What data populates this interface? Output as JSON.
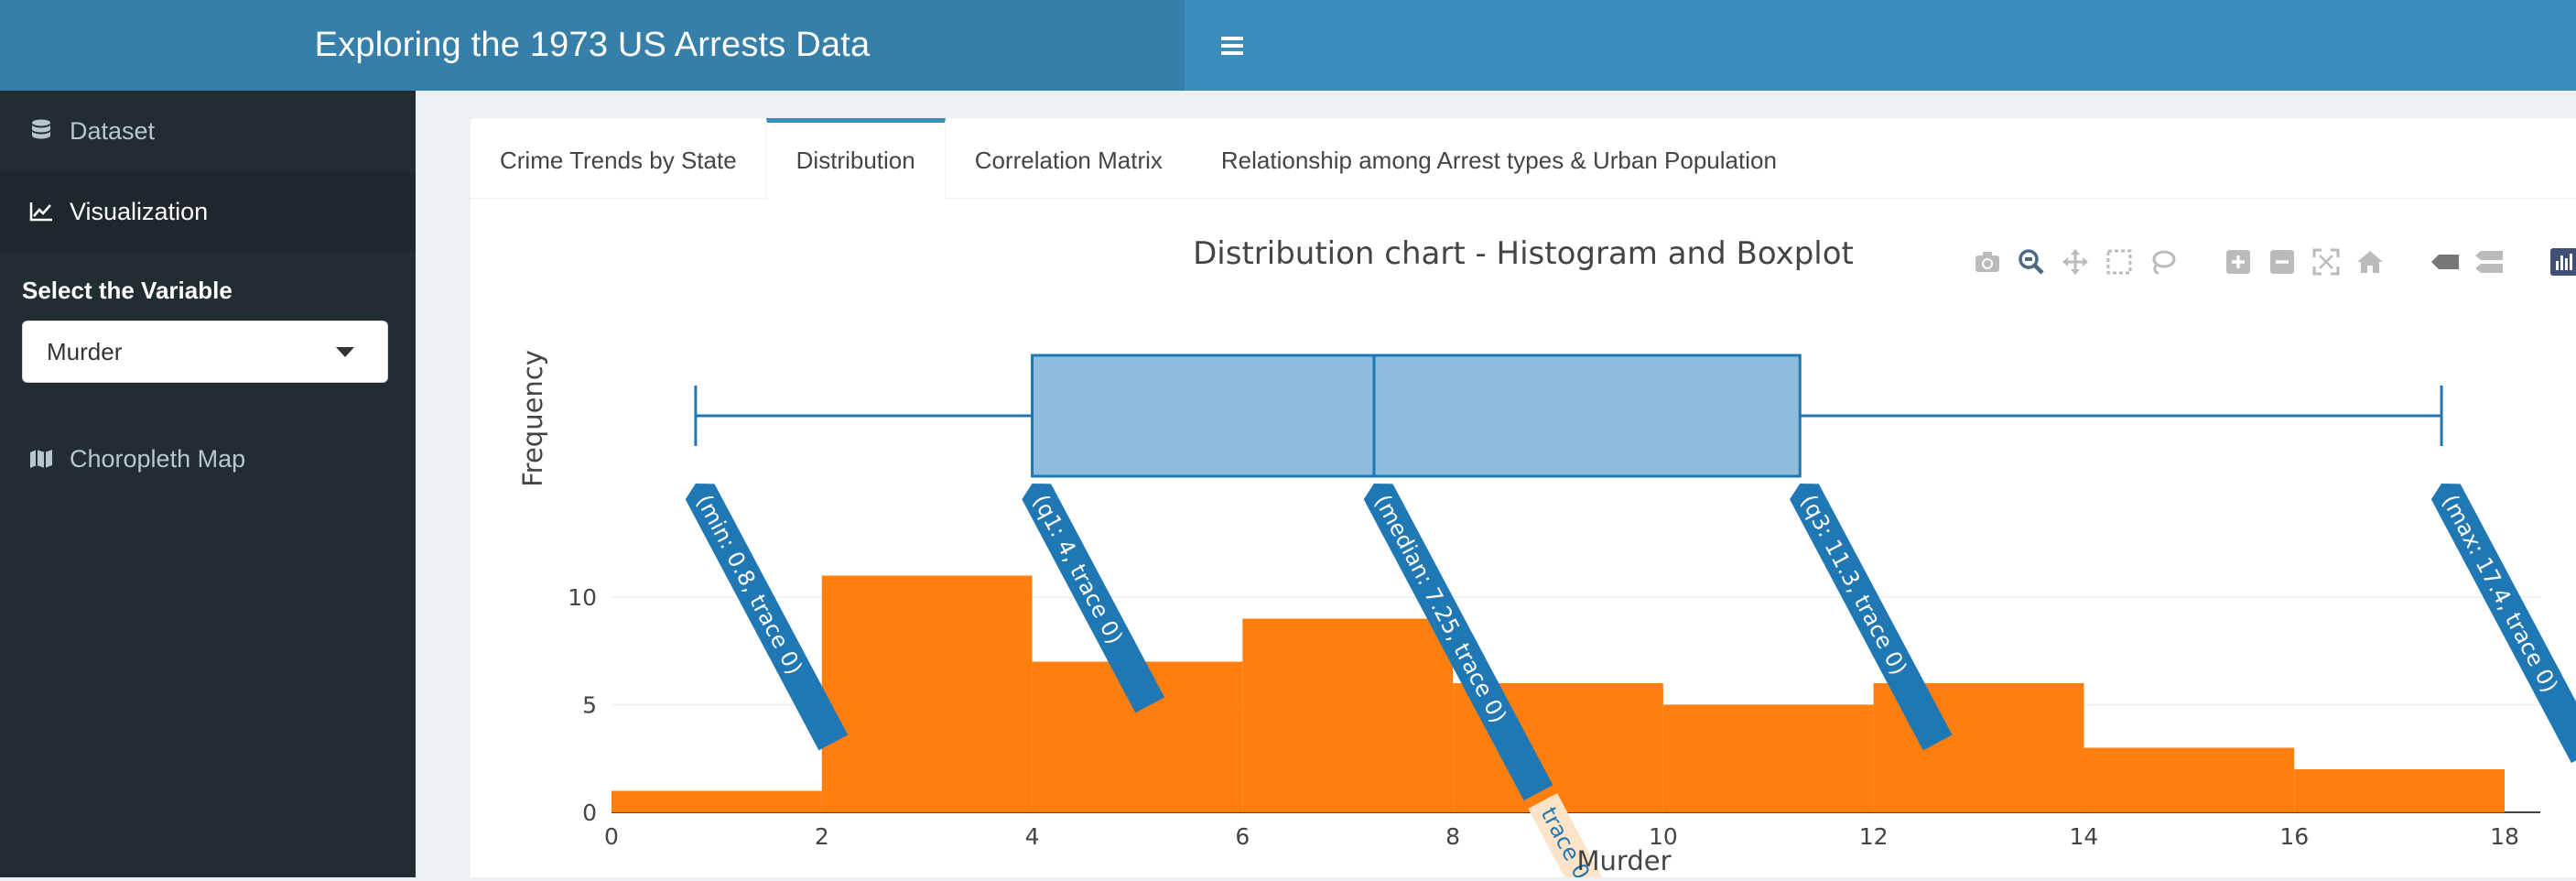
{
  "header": {
    "title": "Exploring the 1973 US Arrests Data",
    "menu_icon": "hamburger-icon"
  },
  "sidebar": {
    "items": [
      {
        "label": "Dataset",
        "icon": "database-icon"
      },
      {
        "label": "Visualization",
        "icon": "line-chart-icon"
      },
      {
        "label": "Choropleth Map",
        "icon": "map-icon"
      }
    ],
    "select_label": "Select the Variable",
    "select_value": "Murder"
  },
  "tabs": [
    {
      "label": "Crime Trends by State"
    },
    {
      "label": "Distribution"
    },
    {
      "label": "Correlation Matrix"
    },
    {
      "label": "Relationship among Arrest types & Urban Population"
    }
  ],
  "active_tab": "Distribution",
  "modebar": [
    "camera-icon",
    "zoom-icon",
    "pan-icon",
    "box-select-icon",
    "lasso-icon",
    "zoom-in-icon",
    "zoom-out-icon",
    "autoscale-icon",
    "reset-axes-icon",
    "hover-closest-icon",
    "hover-compare-icon",
    "plotly-logo-icon"
  ],
  "colors": {
    "header_brand": "#367fa9",
    "header_nav": "#3c8dbc",
    "sidebar": "#222d32",
    "histogram": "#ff7f0e",
    "box_fill": "#8fbbdd",
    "box_line": "#1f77b4"
  },
  "chart_data": {
    "type": "histogram+box",
    "title": "Distribution chart - Histogram and Boxplot",
    "xlabel": "Murder",
    "ylabel": "Frequency",
    "xlim": [
      0,
      18.3
    ],
    "ylim": [
      0,
      11
    ],
    "x_ticks": [
      0,
      2,
      4,
      6,
      8,
      10,
      12,
      14,
      16,
      18
    ],
    "y_ticks": [
      0,
      5,
      10
    ],
    "bins": [
      {
        "x0": 0,
        "x1": 2,
        "count": 1
      },
      {
        "x0": 2,
        "x1": 4,
        "count": 11
      },
      {
        "x0": 4,
        "x1": 6,
        "count": 7
      },
      {
        "x0": 6,
        "x1": 8,
        "count": 9
      },
      {
        "x0": 8,
        "x1": 10,
        "count": 6
      },
      {
        "x0": 10,
        "x1": 12,
        "count": 5
      },
      {
        "x0": 12,
        "x1": 14,
        "count": 6
      },
      {
        "x0": 14,
        "x1": 16,
        "count": 3
      },
      {
        "x0": 16,
        "x1": 18,
        "count": 2
      }
    ],
    "box": {
      "min": 0.8,
      "q1": 4,
      "median": 7.25,
      "q3": 11.3,
      "max": 17.4
    },
    "hover_labels": [
      {
        "text": "(min: 0.8, trace 0)",
        "x": 0.8
      },
      {
        "text": "(q1: 4, trace 0)",
        "x": 4
      },
      {
        "text": "(median: 7.25, trace 0)",
        "x": 7.25
      },
      {
        "text": "(q3: 11.3, trace 0)",
        "x": 11.3
      },
      {
        "text": "(max: 17.4, trace 0)",
        "x": 17.4
      }
    ],
    "hover_trace_label": "trace 0",
    "grid": true
  }
}
